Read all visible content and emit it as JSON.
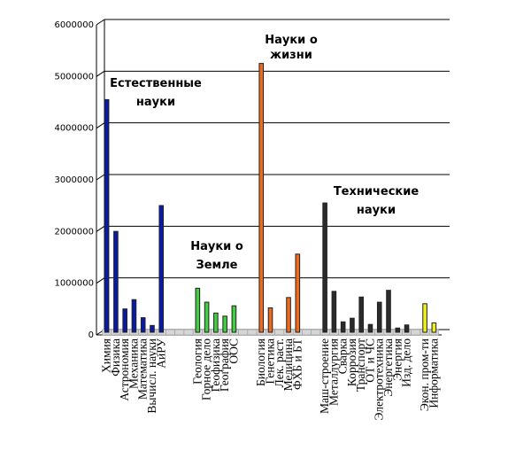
{
  "chart_data": {
    "type": "bar",
    "ylim": [
      0,
      6000000
    ],
    "yticks": [
      0,
      1000000,
      2000000,
      3000000,
      4000000,
      5000000,
      6000000
    ],
    "grid": true,
    "categories": [
      "Химия",
      "Физика",
      "Астрономия",
      "Механика",
      "Математика",
      "Вычисл. науки",
      "АиРУ",
      "",
      "",
      "",
      "Геология",
      "Горное дело",
      "Геофизика",
      "География",
      "ООС",
      "",
      "",
      "Биология",
      "Генетика",
      "Лек. раст.",
      "Медицина",
      "ФХБ и БТ",
      "",
      "",
      "Маш-строение",
      "Металлургия",
      "Сварка",
      "Коррозия",
      "Транспорт",
      "ОТ и ЧС",
      "Электротехника",
      "Энергетика",
      "Энергия",
      "Изд. дело",
      "",
      "Экон. пром-ти",
      "Информатика"
    ],
    "values": [
      4450000,
      1900000,
      400000,
      580000,
      230000,
      80000,
      2400000,
      0,
      0,
      0,
      800000,
      530000,
      320000,
      260000,
      460000,
      0,
      0,
      5150000,
      420000,
      0,
      620000,
      1460000,
      0,
      0,
      2450000,
      740000,
      150000,
      220000,
      630000,
      100000,
      530000,
      760000,
      30000,
      90000,
      0,
      500000,
      130000
    ],
    "bar_colors": [
      "#0a1aa8",
      "#0a1aa8",
      "#0a1aa8",
      "#0a1aa8",
      "#0a1aa8",
      "#0a1aa8",
      "#0a1aa8",
      "#0a1aa8",
      "#0a1aa8",
      "#0a1aa8",
      "#44cc44",
      "#44cc44",
      "#44cc44",
      "#44cc44",
      "#44cc44",
      "#44cc44",
      "#44cc44",
      "#ee6a1c",
      "#ee6a1c",
      "#ee6a1c",
      "#ee6a1c",
      "#ee6a1c",
      "#ee6a1c",
      "#ee6a1c",
      "#2b2b2b",
      "#2b2b2b",
      "#2b2b2b",
      "#2b2b2b",
      "#2b2b2b",
      "#2b2b2b",
      "#2b2b2b",
      "#2b2b2b",
      "#2b2b2b",
      "#2b2b2b",
      "#2b2b2b",
      "#eeee22",
      "#eeee22"
    ],
    "annotations": [
      {
        "lines": [
          "Естественные",
          "науки"
        ],
        "group": "natural"
      },
      {
        "lines": [
          "Науки о",
          "Земле"
        ],
        "group": "earth"
      },
      {
        "lines": [
          "Науки о",
          "жизни"
        ],
        "group": "life"
      },
      {
        "lines": [
          "Технические",
          "науки"
        ],
        "group": "technical"
      }
    ]
  }
}
